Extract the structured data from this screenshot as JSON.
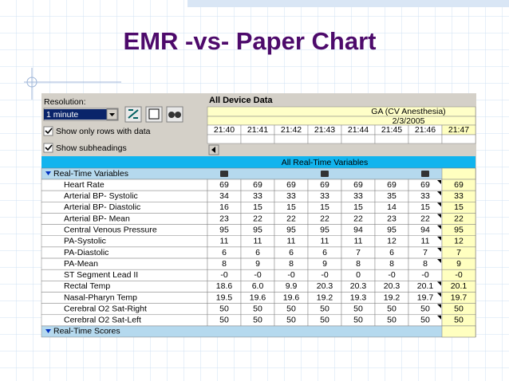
{
  "title": "EMR -vs- Paper Chart",
  "panel": {
    "resolution_label": "Resolution:",
    "resolution_value": "1 minute",
    "checkboxes": [
      "Show only rows with data",
      "Show subheadings"
    ]
  },
  "grid": {
    "title": "All Device Data",
    "case": "GA (CV Anesthesia)",
    "date": "2/3/2005",
    "times": [
      "21:40",
      "21:41",
      "21:42",
      "21:43",
      "21:44",
      "21:45",
      "21:46",
      "21:47"
    ],
    "banner": "All Real-Time Variables",
    "section": "Real-Time Variables",
    "rows": [
      {
        "label": "Heart Rate",
        "values": [
          "69",
          "69",
          "69",
          "69",
          "69",
          "69",
          "69",
          "69"
        ]
      },
      {
        "label": "Arterial BP- Systolic",
        "values": [
          "34",
          "33",
          "33",
          "33",
          "33",
          "35",
          "33",
          "33"
        ]
      },
      {
        "label": "Arterial BP- Diastolic",
        "values": [
          "16",
          "15",
          "15",
          "15",
          "15",
          "14",
          "15",
          "15"
        ]
      },
      {
        "label": "Arterial BP- Mean",
        "values": [
          "23",
          "22",
          "22",
          "22",
          "22",
          "23",
          "22",
          "22"
        ]
      },
      {
        "label": "Central Venous Pressure",
        "values": [
          "95",
          "95",
          "95",
          "95",
          "94",
          "95",
          "94",
          "95"
        ]
      },
      {
        "label": "PA-Systolic",
        "values": [
          "11",
          "11",
          "11",
          "11",
          "11",
          "12",
          "11",
          "12"
        ]
      },
      {
        "label": "PA-Diastolic",
        "values": [
          "6",
          "6",
          "6",
          "6",
          "7",
          "6",
          "7",
          "7"
        ]
      },
      {
        "label": "PA-Mean",
        "values": [
          "8",
          "9",
          "8",
          "9",
          "8",
          "8",
          "8",
          "9"
        ]
      },
      {
        "label": "ST Segment Lead II",
        "values": [
          "-0",
          "-0",
          "-0",
          "-0",
          "0",
          "-0",
          "-0",
          "-0"
        ]
      },
      {
        "label": "Rectal Temp",
        "values": [
          "18.6",
          "6.0",
          "9.9",
          "20.3",
          "20.3",
          "20.3",
          "20.1",
          "20.1"
        ]
      },
      {
        "label": "Nasal-Pharyn Temp",
        "values": [
          "19.5",
          "19.6",
          "19.6",
          "19.2",
          "19.3",
          "19.2",
          "19.7",
          "19.7"
        ]
      },
      {
        "label": "Cerebral O2 Sat-Right",
        "values": [
          "50",
          "50",
          "50",
          "50",
          "50",
          "50",
          "50",
          "50"
        ]
      },
      {
        "label": "Cerebral O2 Sat-Left",
        "values": [
          "50",
          "50",
          "50",
          "50",
          "50",
          "50",
          "50",
          "50"
        ]
      }
    ],
    "footer_section": "Real-Time Scores"
  }
}
